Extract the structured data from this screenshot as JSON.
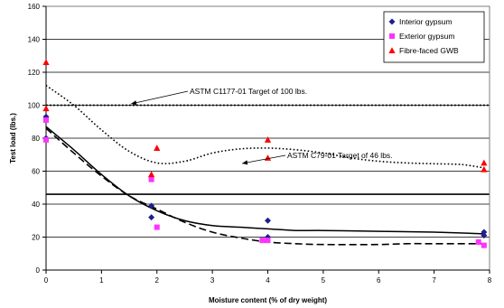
{
  "chart_data": {
    "type": "scatter",
    "xlabel": "Moisture content (% of dry weight)",
    "ylabel": "Test load (lbs.)",
    "xlim": [
      0,
      8
    ],
    "ylim": [
      0,
      160
    ],
    "x_ticks": [
      "0",
      "1",
      "2",
      "3",
      "4",
      "5",
      "6",
      "7",
      "8"
    ],
    "y_ticks": [
      "0",
      "20",
      "40",
      "60",
      "80",
      "100",
      "120",
      "140",
      "160"
    ],
    "grid": "horizontal",
    "legend_position": "top-right",
    "series": [
      {
        "name": "Interior gypsum",
        "marker": "diamond",
        "color": "#1f1f8f",
        "points": [
          [
            0,
            80
          ],
          [
            0,
            93
          ],
          [
            1.9,
            39
          ],
          [
            1.9,
            32
          ],
          [
            4,
            30
          ],
          [
            4,
            20
          ],
          [
            7.9,
            23
          ],
          [
            7.9,
            21
          ]
        ]
      },
      {
        "name": "Exterior gypsum",
        "marker": "square",
        "color": "#ff33ff",
        "points": [
          [
            0,
            79
          ],
          [
            0,
            91
          ],
          [
            1.9,
            55
          ],
          [
            2.0,
            26
          ],
          [
            3.9,
            18
          ],
          [
            4.0,
            18
          ],
          [
            7.8,
            17
          ],
          [
            7.9,
            15
          ]
        ]
      },
      {
        "name": "Fibre-faced GWB",
        "marker": "triangle",
        "color": "#ff0000",
        "points": [
          [
            0,
            126
          ],
          [
            0,
            98
          ],
          [
            1.9,
            58
          ],
          [
            2.0,
            74
          ],
          [
            4,
            79
          ],
          [
            4,
            68
          ],
          [
            7.9,
            65
          ],
          [
            7.9,
            61
          ]
        ]
      }
    ],
    "trend_lines": [
      {
        "style": "dotted",
        "points": [
          [
            0,
            112
          ],
          [
            0.5,
            100
          ],
          [
            1,
            85
          ],
          [
            1.5,
            72
          ],
          [
            2,
            65
          ],
          [
            2.5,
            66
          ],
          [
            3,
            71
          ],
          [
            3.5,
            73.5
          ],
          [
            4,
            74
          ],
          [
            4.5,
            73
          ],
          [
            5,
            71
          ],
          [
            5.5,
            68
          ],
          [
            6,
            66
          ],
          [
            6.5,
            65
          ],
          [
            7,
            64.5
          ],
          [
            7.5,
            64
          ],
          [
            7.9,
            62
          ]
        ]
      },
      {
        "style": "solid",
        "points": [
          [
            0,
            87
          ],
          [
            0.5,
            73
          ],
          [
            1,
            58
          ],
          [
            1.5,
            45
          ],
          [
            2,
            36
          ],
          [
            2.5,
            30
          ],
          [
            3,
            27
          ],
          [
            3.5,
            26
          ],
          [
            4,
            25
          ],
          [
            4.5,
            24
          ],
          [
            5,
            24
          ],
          [
            6,
            23.5
          ],
          [
            7,
            23
          ],
          [
            7.9,
            22
          ]
        ]
      },
      {
        "style": "dashed",
        "points": [
          [
            0,
            86
          ],
          [
            0.5,
            71
          ],
          [
            1,
            57
          ],
          [
            1.5,
            45
          ],
          [
            2,
            37
          ],
          [
            2.5,
            29
          ],
          [
            3,
            23
          ],
          [
            3.5,
            19.5
          ],
          [
            4,
            17
          ],
          [
            4.5,
            16
          ],
          [
            5,
            15.5
          ],
          [
            6,
            15.5
          ],
          [
            6.5,
            16
          ],
          [
            7,
            16
          ],
          [
            7.9,
            16
          ]
        ]
      }
    ],
    "reference_lines": [
      {
        "y": 100,
        "style": "dotted",
        "label": "ASTM C1177-01 Target of 100 lbs."
      },
      {
        "y": 46,
        "style": "solid",
        "label": "ASTM C79-01 Target of 46 lbs."
      }
    ]
  }
}
